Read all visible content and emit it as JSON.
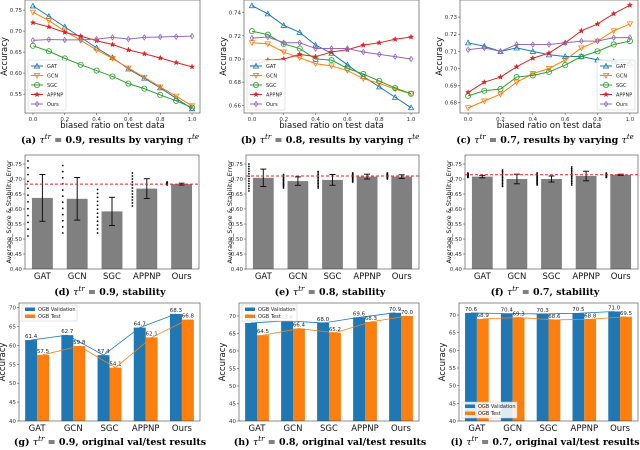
{
  "colors": {
    "GAT": "#1f77b4",
    "GCN": "#ff7f0e",
    "SGC": "#2ca02c",
    "APPNP": "#d62728",
    "Ours": "#9467bd",
    "bar_gray": "#808080",
    "ref_line": "#e8231f",
    "ogb_val": "#1f77b4",
    "ogb_test": "#ff7f0e"
  },
  "chart_data": [
    {
      "id": "a",
      "type": "line",
      "caption": {
        "label": "(a) ",
        "tau": "τ",
        "sup1": "tr",
        "eq": " = 0.9, results by varying ",
        "tau2": "τ",
        "sup2": "te"
      },
      "xlabel": "biased ratio on test data",
      "ylabel": "Accuracy",
      "xlim": [
        -0.05,
        1.05
      ],
      "ylim": [
        0.505,
        0.774
      ],
      "xticks": [
        "0.0",
        "0.2",
        "0.4",
        "0.6",
        "0.8",
        "1.0"
      ],
      "yticks": [
        "0.55",
        "0.60",
        "0.65",
        "0.70",
        "0.75"
      ],
      "legend": "lower-left",
      "grid": false,
      "x": [
        0,
        0.1,
        0.2,
        0.3,
        0.4,
        0.5,
        0.6,
        0.7,
        0.8,
        0.9,
        1.0
      ],
      "series": [
        {
          "name": "GAT",
          "marker": "triangle-up",
          "values": [
            0.76,
            0.735,
            0.71,
            0.685,
            0.66,
            0.637,
            0.61,
            0.588,
            0.565,
            0.54,
            0.515
          ]
        },
        {
          "name": "GCN",
          "marker": "triangle-down",
          "values": [
            0.745,
            0.725,
            0.7,
            0.678,
            0.655,
            0.635,
            0.612,
            0.59,
            0.567,
            0.545,
            0.522
          ]
        },
        {
          "name": "SGC",
          "marker": "circle",
          "values": [
            0.665,
            0.652,
            0.635,
            0.62,
            0.606,
            0.592,
            0.575,
            0.563,
            0.548,
            0.534,
            0.518
          ]
        },
        {
          "name": "APPNP",
          "marker": "star",
          "values": [
            0.72,
            0.71,
            0.697,
            0.688,
            0.677,
            0.668,
            0.655,
            0.646,
            0.636,
            0.625,
            0.615
          ]
        },
        {
          "name": "Ours",
          "marker": "diamond",
          "values": [
            0.678,
            0.68,
            0.679,
            0.679,
            0.681,
            0.685,
            0.681,
            0.685,
            0.686,
            0.687,
            0.688
          ]
        }
      ]
    },
    {
      "id": "b",
      "type": "line",
      "caption": {
        "label": "(b) ",
        "tau": "τ",
        "sup1": "tr",
        "eq": " = 0.8, results by varying ",
        "tau2": "τ",
        "sup2": "te"
      },
      "xlabel": "biased ratio on test data",
      "ylabel": "Accuracy",
      "xlim": [
        -0.05,
        1.05
      ],
      "ylim": [
        0.6534,
        0.7509
      ],
      "xticks": [
        "0.0",
        "0.2",
        "0.4",
        "0.6",
        "0.8",
        "1.0"
      ],
      "yticks": [
        "0.66",
        "0.68",
        "0.70",
        "0.72",
        "0.74"
      ],
      "legend": "lower-left",
      "grid": false,
      "x": [
        0,
        0.1,
        0.2,
        0.3,
        0.4,
        0.5,
        0.6,
        0.7,
        0.8,
        0.9,
        1.0
      ],
      "series": [
        {
          "name": "GAT",
          "marker": "triangle-up",
          "values": [
            0.746,
            0.739,
            0.729,
            0.723,
            0.712,
            0.705,
            0.695,
            0.685,
            0.676,
            0.667,
            0.658
          ]
        },
        {
          "name": "GCN",
          "marker": "triangle-down",
          "values": [
            0.714,
            0.713,
            0.706,
            0.701,
            0.696,
            0.694,
            0.69,
            0.683,
            0.679,
            0.674,
            0.67
          ]
        },
        {
          "name": "SGC",
          "marker": "circle",
          "values": [
            0.724,
            0.721,
            0.713,
            0.709,
            0.7,
            0.699,
            0.692,
            0.687,
            0.681,
            0.675,
            0.67
          ]
        },
        {
          "name": "APPNP",
          "marker": "star",
          "values": [
            0.694,
            0.699,
            0.7,
            0.704,
            0.702,
            0.706,
            0.708,
            0.712,
            0.714,
            0.717,
            0.719
          ]
        },
        {
          "name": "Ours",
          "marker": "diamond",
          "values": [
            0.718,
            0.719,
            0.714,
            0.714,
            0.709,
            0.709,
            0.709,
            0.706,
            0.704,
            0.702,
            0.7
          ]
        }
      ]
    },
    {
      "id": "c",
      "type": "line",
      "caption": {
        "label": "(c) ",
        "tau": "τ",
        "sup1": "tr",
        "eq": " = 0.7, results by varying ",
        "tau2": "τ",
        "sup2": "te"
      },
      "xlabel": "biased ratio on test data",
      "ylabel": "Accuracy",
      "xlim": [
        -0.05,
        1.05
      ],
      "ylim": [
        0.674,
        0.74
      ],
      "xticks": [
        "0.0",
        "0.2",
        "0.4",
        "0.6",
        "0.8",
        "1.0"
      ],
      "yticks": [
        "0.68",
        "0.69",
        "0.70",
        "0.71",
        "0.72",
        "0.73"
      ],
      "legend": "lower-right",
      "grid": false,
      "x": [
        0,
        0.1,
        0.2,
        0.3,
        0.4,
        0.5,
        0.6,
        0.7,
        0.8,
        0.9,
        1.0
      ],
      "series": [
        {
          "name": "GAT",
          "marker": "triangle-up",
          "values": [
            0.715,
            0.713,
            0.71,
            0.712,
            0.71,
            0.708,
            0.707,
            0.707,
            0.705,
            0.704,
            0.703
          ]
        },
        {
          "name": "GCN",
          "marker": "triangle-down",
          "values": [
            0.677,
            0.681,
            0.685,
            0.692,
            0.697,
            0.7,
            0.705,
            0.712,
            0.716,
            0.722,
            0.726
          ]
        },
        {
          "name": "SGC",
          "marker": "circle",
          "values": [
            0.684,
            0.687,
            0.688,
            0.695,
            0.696,
            0.698,
            0.702,
            0.707,
            0.71,
            0.714,
            0.716
          ]
        },
        {
          "name": "APPNP",
          "marker": "star",
          "values": [
            0.686,
            0.692,
            0.695,
            0.701,
            0.706,
            0.709,
            0.715,
            0.722,
            0.726,
            0.732,
            0.737
          ]
        },
        {
          "name": "Ours",
          "marker": "diamond",
          "values": [
            0.711,
            0.712,
            0.71,
            0.714,
            0.714,
            0.714,
            0.715,
            0.716,
            0.716,
            0.718,
            0.718
          ]
        }
      ]
    },
    {
      "id": "d",
      "type": "bar",
      "subtype": "stability",
      "caption": {
        "label": "(d) ",
        "tau": "τ",
        "sup1": "tr",
        "eq": " = 0.9, stability"
      },
      "ylabel": "Average_Score  &  Stability_Error",
      "ylim": [
        0.4,
        0.78
      ],
      "yticks": [
        "0.40",
        "0.45",
        "0.50",
        "0.55",
        "0.60",
        "0.65",
        "0.70",
        "0.75"
      ],
      "categories": [
        "GAT",
        "GCN",
        "SGC",
        "APPNP",
        "Ours"
      ],
      "reference_line": 0.683,
      "values": [
        0.637,
        0.634,
        0.592,
        0.668,
        0.683
      ],
      "error": [
        0.078,
        0.071,
        0.047,
        0.033,
        0.003
      ],
      "points_range": [
        [
          0.51,
          0.76
        ],
        [
          0.52,
          0.745
        ],
        [
          0.52,
          0.665
        ],
        [
          0.61,
          0.72
        ],
        [
          0.68,
          0.69
        ]
      ]
    },
    {
      "id": "e",
      "type": "bar",
      "subtype": "stability",
      "caption": {
        "label": "(e) ",
        "tau": "τ",
        "sup1": "tr",
        "eq": " = 0.8, stability"
      },
      "ylabel": "Average_Score  &  Stability_Error",
      "ylim": [
        0.4,
        0.78
      ],
      "yticks": [
        "0.40",
        "0.45",
        "0.50",
        "0.55",
        "0.60",
        "0.65",
        "0.70",
        "0.75"
      ],
      "categories": [
        "GAT",
        "GCN",
        "SGC",
        "APPNP",
        "Ours"
      ],
      "reference_line": 0.71,
      "values": [
        0.704,
        0.693,
        0.697,
        0.708,
        0.708
      ],
      "error": [
        0.029,
        0.014,
        0.018,
        0.008,
        0.006
      ],
      "points_range": [
        [
          0.66,
          0.75
        ],
        [
          0.67,
          0.715
        ],
        [
          0.67,
          0.725
        ],
        [
          0.69,
          0.72
        ],
        [
          0.7,
          0.72
        ]
      ]
    },
    {
      "id": "f",
      "type": "bar",
      "subtype": "stability",
      "caption": {
        "label": "(f) ",
        "tau": "τ",
        "sup1": "tr",
        "eq": " = 0.7, stability"
      },
      "ylabel": "Average_Score  &  Stability_Error",
      "ylim": [
        0.4,
        0.78
      ],
      "yticks": [
        "0.40",
        "0.45",
        "0.50",
        "0.55",
        "0.60",
        "0.65",
        "0.70",
        "0.75"
      ],
      "categories": [
        "GAT",
        "GCN",
        "SGC",
        "APPNP",
        "Ours"
      ],
      "reference_line": 0.714,
      "values": [
        0.708,
        0.7,
        0.7,
        0.71,
        0.714
      ],
      "error": [
        0.004,
        0.016,
        0.01,
        0.016,
        0.002
      ],
      "points_range": [
        [
          0.705,
          0.72
        ],
        [
          0.675,
          0.73
        ],
        [
          0.68,
          0.72
        ],
        [
          0.68,
          0.74
        ],
        [
          0.705,
          0.72
        ]
      ]
    },
    {
      "id": "g",
      "type": "bar",
      "subtype": "grouped",
      "caption": {
        "label": "(g) ",
        "tau": "τ",
        "sup1": "tr",
        "eq": " = 0.9, original val/test results"
      },
      "ylabel": "Accuracy",
      "ylim": [
        40,
        71.2
      ],
      "yticks": [
        "40",
        "45",
        "50",
        "55",
        "60",
        "65",
        "70"
      ],
      "legend": "upper-left",
      "categories": [
        "GAT",
        "GCN",
        "SGC",
        "APPNP",
        "Ours"
      ],
      "series": [
        {
          "name": "OGB Validation",
          "values": [
            61.4,
            62.7,
            57.4,
            64.7,
            68.3
          ]
        },
        {
          "name": "OGB Test",
          "values": [
            57.5,
            59.8,
            54.1,
            62.1,
            66.8
          ]
        }
      ]
    },
    {
      "id": "h",
      "type": "bar",
      "subtype": "grouped",
      "caption": {
        "label": "(h) ",
        "tau": "τ",
        "sup1": "tr",
        "eq": " = 0.8, original val/test results"
      },
      "ylabel": "Accuracy",
      "ylim": [
        40,
        73.7
      ],
      "yticks": [
        "40",
        "45",
        "50",
        "55",
        "60",
        "65",
        "70"
      ],
      "legend": "upper-left",
      "categories": [
        "GAT",
        "GCN",
        "SGC",
        "APPNP",
        "Ours"
      ],
      "series": [
        {
          "name": "OGB Validation",
          "values": [
            68.0,
            68.6,
            68.0,
            69.6,
            70.9
          ]
        },
        {
          "name": "OGB Test",
          "values": [
            64.5,
            66.4,
            65.2,
            68.3,
            70.0
          ]
        }
      ]
    },
    {
      "id": "i",
      "type": "bar",
      "subtype": "grouped",
      "caption": {
        "label": "(i) ",
        "tau": "τ",
        "sup1": "tr",
        "eq": " = 0.7, original val/test results"
      },
      "ylabel": "Accuracy",
      "ylim": [
        40,
        73.4
      ],
      "yticks": [
        "40",
        "45",
        "50",
        "55",
        "60",
        "65",
        "70"
      ],
      "legend": "lower-left",
      "categories": [
        "GAT",
        "GCN",
        "SGC",
        "APPNP",
        "Ours"
      ],
      "series": [
        {
          "name": "OGB Validation",
          "values": [
            70.6,
            70.4,
            70.3,
            70.5,
            71.0
          ]
        },
        {
          "name": "OGB Test",
          "values": [
            68.9,
            69.3,
            68.6,
            68.8,
            69.5
          ]
        }
      ]
    }
  ]
}
